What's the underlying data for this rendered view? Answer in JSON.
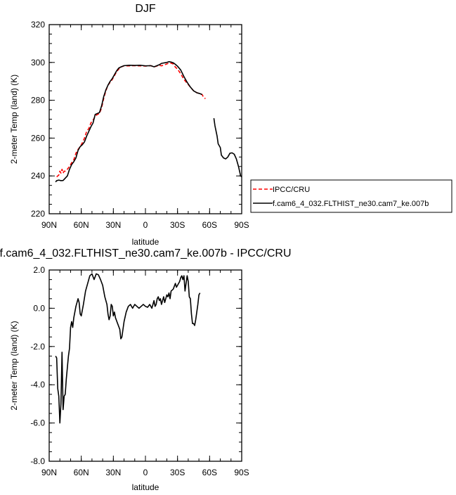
{
  "chart_data": [
    {
      "type": "line",
      "title": "DJF",
      "xlabel": "latitude",
      "ylabel": "2-meter Temp (land) (K)",
      "xlim": [
        90,
        -90
      ],
      "ylim": [
        220,
        320
      ],
      "x_tick_values": [
        90,
        60,
        30,
        0,
        -30,
        -60,
        -90
      ],
      "x_tick_labels": [
        "90N",
        "60N",
        "30N",
        "0",
        "30S",
        "60S",
        "90S"
      ],
      "y_tick_values": [
        220,
        240,
        260,
        280,
        300,
        320
      ],
      "y_tick_labels": [
        "220",
        "240",
        "260",
        "280",
        "300",
        "320"
      ],
      "legend_position": "right",
      "series": [
        {
          "name": "IPCC/CRU",
          "color": "#ff0000",
          "dash": "dashed",
          "segments": [
            [
              [
                83,
                239.5
              ],
              [
                81,
                240.5
              ],
              [
                80,
                242.5
              ],
              [
                79,
                241.5
              ],
              [
                78,
                243.5
              ],
              [
                77,
                241.5
              ],
              [
                76,
                242.5
              ],
              [
                75,
                242.5
              ],
              [
                73,
                243.5
              ],
              [
                71,
                245
              ],
              [
                69,
                247
              ],
              [
                67,
                248.5
              ],
              [
                65,
                252
              ],
              [
                63,
                254
              ],
              [
                61,
                255.5
              ],
              [
                59,
                257.5
              ],
              [
                57,
                260
              ],
              [
                55,
                263.5
              ],
              [
                53,
                265
              ],
              [
                51,
                268
              ],
              [
                49,
                269.5
              ],
              [
                47,
                271.5
              ],
              [
                45,
                272.5
              ],
              [
                43,
                273
              ],
              [
                41,
                276
              ],
              [
                39,
                281
              ],
              [
                37,
                285
              ],
              [
                35,
                288
              ],
              [
                33,
                289.5
              ],
              [
                31,
                291
              ],
              [
                29,
                293
              ],
              [
                27,
                295
              ],
              [
                25,
                296.5
              ],
              [
                22,
                297.8
              ],
              [
                20,
                298.2
              ],
              [
                15,
                298.2
              ],
              [
                10,
                298.3
              ],
              [
                5,
                298.2
              ],
              [
                0,
                298.1
              ],
              [
                -5,
                298.3
              ],
              [
                -8,
                297.6
              ],
              [
                -10,
                298
              ],
              [
                -13,
                298.5
              ],
              [
                -15,
                298.2
              ],
              [
                -18,
                298.8
              ],
              [
                -20,
                299.2
              ],
              [
                -22,
                299.7
              ],
              [
                -24,
                299.6
              ],
              [
                -26,
                299.2
              ],
              [
                -28,
                297.5
              ],
              [
                -30,
                296.5
              ],
              [
                -33,
                294
              ],
              [
                -36,
                291
              ],
              [
                -39,
                289
              ],
              [
                -42,
                287
              ],
              [
                -45,
                285
              ],
              [
                -48,
                284
              ],
              [
                -51,
                283.5
              ],
              [
                -53,
                283
              ],
              [
                -54,
                282
              ],
              [
                -55,
                281.5
              ],
              [
                -56,
                280.8
              ]
            ]
          ]
        },
        {
          "name": "f.cam6_4_032.FLTHIST_ne30.cam7_ke.007b",
          "color": "#000000",
          "dash": "solid",
          "segments": [
            [
              [
                84,
                236.8
              ],
              [
                83,
                237.5
              ],
              [
                81,
                237.8
              ],
              [
                79,
                237.5
              ],
              [
                77,
                237.6
              ],
              [
                75,
                238.8
              ],
              [
                73,
                240
              ],
              [
                71,
                243.5
              ],
              [
                69,
                246
              ],
              [
                67,
                247.5
              ],
              [
                65,
                249.5
              ],
              [
                63,
                253.5
              ],
              [
                61,
                255.5
              ],
              [
                59,
                256.5
              ],
              [
                57,
                258
              ],
              [
                55,
                261
              ],
              [
                53,
                263.5
              ],
              [
                51,
                266
              ],
              [
                49,
                268
              ],
              [
                47,
                272.5
              ],
              [
                45,
                273
              ],
              [
                43,
                273.5
              ],
              [
                41,
                277
              ],
              [
                39,
                282
              ],
              [
                37,
                285.5
              ],
              [
                35,
                288
              ],
              [
                33,
                290
              ],
              [
                31,
                291.5
              ],
              [
                29,
                293.5
              ],
              [
                27,
                295.5
              ],
              [
                25,
                297
              ],
              [
                23,
                297.6
              ],
              [
                20,
                298.3
              ],
              [
                15,
                298.5
              ],
              [
                10,
                298.4
              ],
              [
                5,
                298.5
              ],
              [
                0,
                298.2
              ],
              [
                -5,
                298.3
              ],
              [
                -8,
                297.7
              ],
              [
                -10,
                298.1
              ],
              [
                -13,
                298.8
              ],
              [
                -15,
                299.5
              ],
              [
                -18,
                299.8
              ],
              [
                -20,
                300
              ],
              [
                -22,
                300.4
              ],
              [
                -24,
                300.2
              ],
              [
                -26,
                299.8
              ],
              [
                -28,
                299
              ],
              [
                -30,
                298
              ],
              [
                -33,
                296
              ],
              [
                -36,
                292.5
              ],
              [
                -39,
                289.5
              ],
              [
                -42,
                287
              ],
              [
                -45,
                285
              ],
              [
                -48,
                284
              ],
              [
                -51,
                283.5
              ],
              [
                -53,
                283
              ]
            ],
            [
              [
                -64,
                270.5
              ],
              [
                -65,
                266.5
              ],
              [
                -67,
                261
              ],
              [
                -68,
                257
              ],
              [
                -70,
                255
              ],
              [
                -71,
                251
              ],
              [
                -73,
                249.5
              ],
              [
                -75,
                249
              ],
              [
                -77,
                250
              ],
              [
                -79,
                252
              ],
              [
                -81,
                252.2
              ],
              [
                -83,
                251.5
              ],
              [
                -85,
                249
              ],
              [
                -87,
                245
              ],
              [
                -89,
                240
              ],
              [
                -90,
                239.5
              ]
            ]
          ]
        }
      ]
    },
    {
      "type": "line",
      "title": "f.cam6_4_032.FLTHIST_ne30.cam7_ke.007b - IPCC/CRU",
      "xlabel": "latitude",
      "ylabel": "2-meter Temp (land) (K)",
      "xlim": [
        90,
        -90
      ],
      "ylim": [
        -8,
        2
      ],
      "x_tick_values": [
        90,
        60,
        30,
        0,
        -30,
        -60,
        -90
      ],
      "x_tick_labels": [
        "90N",
        "60N",
        "30N",
        "0",
        "30S",
        "60S",
        "90S"
      ],
      "y_tick_values": [
        -8,
        -6,
        -4,
        -2,
        0,
        2
      ],
      "y_tick_labels": [
        "-8.0",
        "-6.0",
        "-4.0",
        "-2.0",
        "0.0",
        "2.0"
      ],
      "series": [
        {
          "color": "#000000",
          "dash": "solid",
          "segments": [
            [
              [
                84,
                -2.5
              ],
              [
                83,
                -2.6
              ],
              [
                82,
                -4.2
              ],
              [
                81,
                -4.6
              ],
              [
                80,
                -6.0
              ],
              [
                79,
                -5.0
              ],
              [
                78,
                -2.3
              ],
              [
                77,
                -5.3
              ],
              [
                76,
                -4.6
              ],
              [
                75,
                -4.5
              ],
              [
                74,
                -3.7
              ],
              [
                73,
                -3.1
              ],
              [
                72,
                -2.5
              ],
              [
                71,
                -2.1
              ],
              [
                70,
                -1.0
              ],
              [
                69,
                -0.7
              ],
              [
                68,
                -1.0
              ],
              [
                67,
                -0.5
              ],
              [
                65,
                0.1
              ],
              [
                63,
                0.5
              ],
              [
                62,
                0.3
              ],
              [
                61,
                -0.3
              ],
              [
                60,
                -0.4
              ],
              [
                58,
                0.2
              ],
              [
                56,
                0.9
              ],
              [
                54,
                1.3
              ],
              [
                52,
                1.7
              ],
              [
                50,
                1.8
              ],
              [
                48,
                1.5
              ],
              [
                46,
                1.8
              ],
              [
                44,
                1.75
              ],
              [
                42,
                1.5
              ],
              [
                40,
                1.2
              ],
              [
                38,
                0.6
              ],
              [
                36,
                0.2
              ],
              [
                35,
                -0.3
              ],
              [
                34,
                -0.6
              ],
              [
                33,
                -0.4
              ],
              [
                32,
                0.2
              ],
              [
                31,
                0.1
              ],
              [
                30,
                -0.4
              ],
              [
                29,
                -0.2
              ],
              [
                28,
                -0.5
              ],
              [
                26,
                -0.8
              ],
              [
                24,
                -1.1
              ],
              [
                23,
                -1.6
              ],
              [
                22,
                -1.5
              ],
              [
                20,
                -0.7
              ],
              [
                18,
                -0.2
              ],
              [
                16,
                0.1
              ],
              [
                14,
                0.2
              ],
              [
                12,
                0.0
              ],
              [
                10,
                0.2
              ],
              [
                8,
                0.1
              ],
              [
                6,
                0.0
              ],
              [
                4,
                0.1
              ],
              [
                2,
                0.2
              ],
              [
                0,
                0.1
              ],
              [
                -2,
                0.05
              ],
              [
                -4,
                0.2
              ],
              [
                -6,
                0.0
              ],
              [
                -7,
                0.2
              ],
              [
                -8,
                0.4
              ],
              [
                -9,
                0.1
              ],
              [
                -10,
                0.2
              ],
              [
                -11,
                0.5
              ],
              [
                -12,
                0.6
              ],
              [
                -13,
                0.4
              ],
              [
                -14,
                0.5
              ],
              [
                -15,
                0.2
              ],
              [
                -16,
                0.4
              ],
              [
                -17,
                0.6
              ],
              [
                -18,
                0.3
              ],
              [
                -19,
                0.5
              ],
              [
                -20,
                0.7
              ],
              [
                -21,
                0.6
              ],
              [
                -22,
                0.8
              ],
              [
                -23,
                0.5
              ],
              [
                -24,
                0.9
              ],
              [
                -26,
                1.0
              ],
              [
                -28,
                1.3
              ],
              [
                -29,
                1.1
              ],
              [
                -30,
                1.2
              ],
              [
                -32,
                1.4
              ],
              [
                -33,
                1.6
              ],
              [
                -34,
                1.7
              ],
              [
                -35,
                1.5
              ],
              [
                -36,
                1.7
              ],
              [
                -37,
                0.9
              ],
              [
                -38,
                1.3
              ],
              [
                -39,
                1.7
              ],
              [
                -40,
                1.4
              ],
              [
                -41,
                0.6
              ],
              [
                -42,
                0.5
              ],
              [
                -43,
                -0.3
              ],
              [
                -44,
                -0.8
              ],
              [
                -45,
                -0.8
              ],
              [
                -46,
                -0.9
              ],
              [
                -47,
                -0.6
              ],
              [
                -48,
                -0.2
              ],
              [
                -49,
                0.2
              ],
              [
                -50,
                0.7
              ],
              [
                -51,
                0.8
              ]
            ]
          ]
        }
      ]
    }
  ]
}
